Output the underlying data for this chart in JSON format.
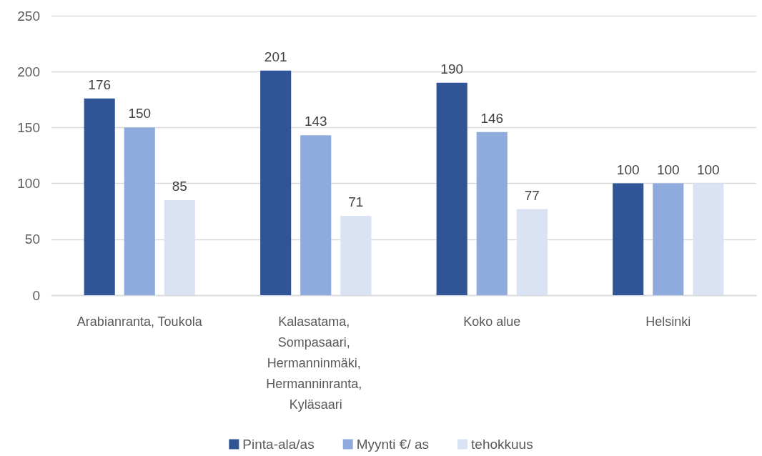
{
  "chart_data": {
    "type": "bar",
    "categories": [
      "Arabianranta, Toukola",
      "Kalasatama, Sompasaari, Hermanninmäki, Hermanninranta, Kyläsaari",
      "Koko alue",
      "Helsinki"
    ],
    "series": [
      {
        "name": "Pinta-ala/as",
        "color": "#2f5597",
        "values": [
          176,
          201,
          190,
          100
        ]
      },
      {
        "name": "Myynti €/ as",
        "color": "#8faadc",
        "values": [
          150,
          143,
          146,
          100
        ]
      },
      {
        "name": "tehokkuus",
        "color": "#dae3f3",
        "values": [
          85,
          71,
          77,
          100
        ]
      }
    ],
    "ylim": [
      0,
      250
    ],
    "yticks": [
      0,
      50,
      100,
      150,
      200,
      250
    ],
    "grid": "y",
    "legend": "bottom",
    "data_labels": true
  }
}
